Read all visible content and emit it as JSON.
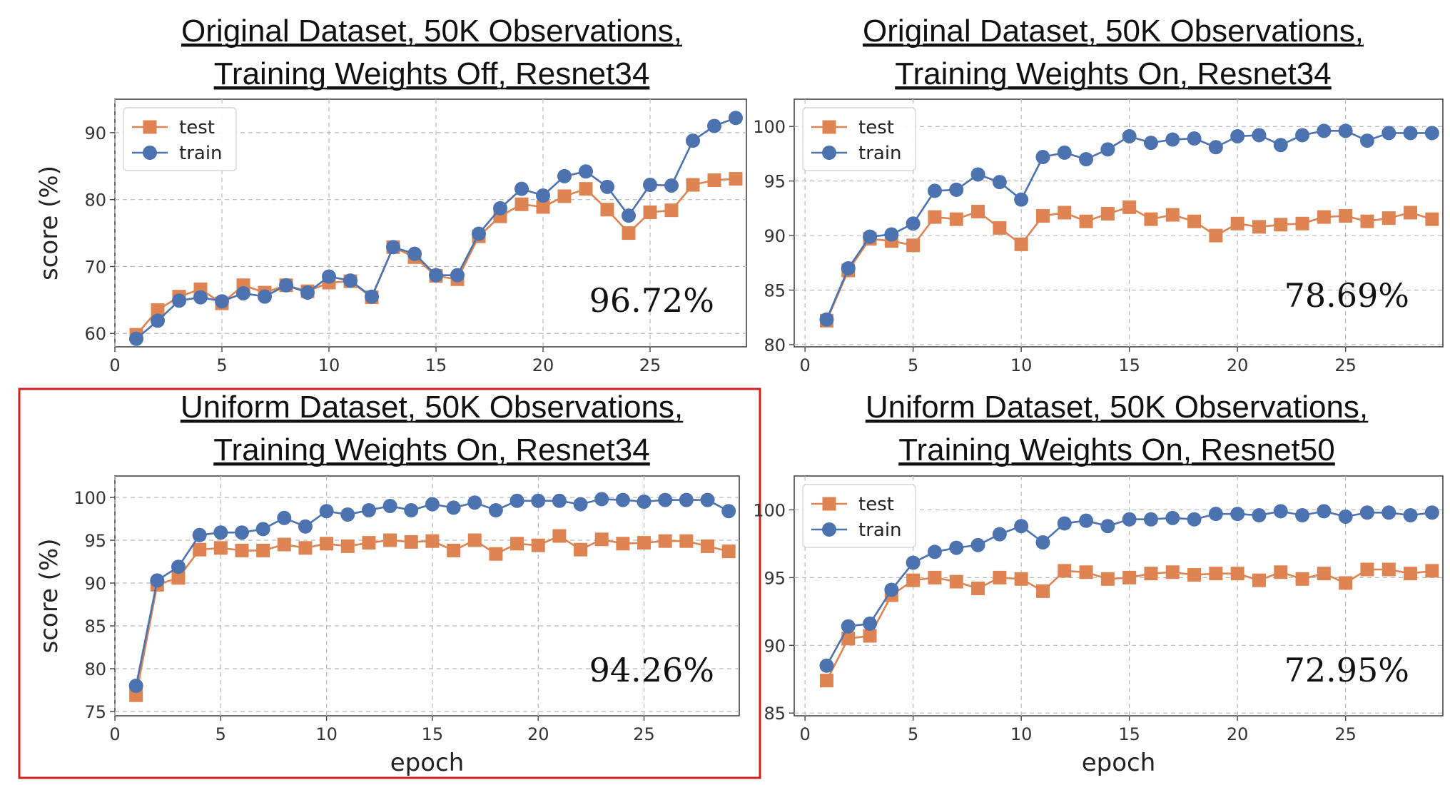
{
  "colors": {
    "test": "#dd8452",
    "train": "#4c72b0",
    "highlight": "#cc2222"
  },
  "chart_data": [
    {
      "type": "line",
      "title": [
        "Original Dataset, 50K Observations,",
        "Training Weights Off, Resnet34"
      ],
      "xlabel": "",
      "ylabel": "score (%)",
      "xlim": [
        0,
        29.5
      ],
      "ylim": [
        58,
        95
      ],
      "xticks": [
        0,
        5,
        10,
        15,
        20,
        25
      ],
      "yticks": [
        60,
        70,
        80,
        90
      ],
      "legend": "top-left",
      "grid": true,
      "annotation": "96.72%",
      "highlighted": false,
      "x": [
        1,
        2,
        3,
        4,
        5,
        6,
        7,
        8,
        9,
        10,
        11,
        12,
        13,
        14,
        15,
        16,
        17,
        18,
        19,
        20,
        21,
        22,
        23,
        24,
        25,
        26,
        27,
        28,
        29
      ],
      "series": [
        {
          "name": "test",
          "marker": "square",
          "values": [
            59.8,
            63.5,
            65.5,
            66.6,
            64.5,
            67.2,
            66.1,
            67.2,
            66.3,
            67.6,
            67.8,
            65.4,
            72.9,
            71.4,
            68.6,
            68.1,
            74.5,
            77.5,
            79.3,
            78.9,
            80.5,
            81.6,
            78.5,
            75.0,
            78.1,
            78.4,
            82.2,
            82.9,
            83.1
          ]
        },
        {
          "name": "train",
          "marker": "circle",
          "values": [
            59.2,
            61.9,
            64.9,
            65.4,
            64.8,
            66.0,
            65.5,
            67.2,
            66.1,
            68.5,
            67.9,
            65.5,
            72.9,
            71.9,
            68.7,
            68.7,
            74.9,
            78.7,
            81.6,
            80.6,
            83.5,
            84.2,
            81.9,
            77.6,
            82.2,
            82.1,
            88.8,
            91.0,
            92.2
          ]
        }
      ]
    },
    {
      "type": "line",
      "title": [
        "Original Dataset, 50K Observations,",
        "Training Weights On, Resnet34"
      ],
      "xlabel": "",
      "ylabel": "",
      "xlim": [
        -0.5,
        29.5
      ],
      "ylim": [
        79.8,
        102.5
      ],
      "xticks": [
        0,
        5,
        10,
        15,
        20,
        25
      ],
      "yticks": [
        80,
        85,
        90,
        95,
        100
      ],
      "legend": "top-left",
      "grid": true,
      "annotation": "78.69%",
      "highlighted": false,
      "x": [
        1,
        2,
        3,
        4,
        5,
        6,
        7,
        8,
        9,
        10,
        11,
        12,
        13,
        14,
        15,
        16,
        17,
        18,
        19,
        20,
        21,
        22,
        23,
        24,
        25,
        26,
        27,
        28,
        29
      ],
      "series": [
        {
          "name": "test",
          "marker": "square",
          "values": [
            82.2,
            86.8,
            89.7,
            89.5,
            89.1,
            91.7,
            91.5,
            92.2,
            90.7,
            89.2,
            91.8,
            92.1,
            91.3,
            92.0,
            92.6,
            91.5,
            91.9,
            91.3,
            90.0,
            91.1,
            90.8,
            91.0,
            91.1,
            91.7,
            91.8,
            91.3,
            91.6,
            92.1,
            91.5
          ]
        },
        {
          "name": "train",
          "marker": "circle",
          "values": [
            82.3,
            87.0,
            89.9,
            90.1,
            91.1,
            94.1,
            94.2,
            95.6,
            94.9,
            93.3,
            97.2,
            97.6,
            97.0,
            97.9,
            99.1,
            98.5,
            98.8,
            98.9,
            98.1,
            99.1,
            99.2,
            98.3,
            99.2,
            99.6,
            99.6,
            98.7,
            99.4,
            99.4,
            99.4
          ]
        }
      ]
    },
    {
      "type": "line",
      "title": [
        "Uniform Dataset, 50K Observations,",
        "Training Weights On, Resnet34"
      ],
      "xlabel": "epoch",
      "ylabel": "score (%)",
      "xlim": [
        0,
        29.5
      ],
      "ylim": [
        74.5,
        102.5
      ],
      "xticks": [
        0,
        5,
        10,
        15,
        20,
        25
      ],
      "yticks": [
        75,
        80,
        85,
        90,
        95,
        100
      ],
      "legend": "none",
      "grid": true,
      "annotation": "94.26%",
      "highlighted": true,
      "x": [
        1,
        2,
        3,
        4,
        5,
        6,
        7,
        8,
        9,
        10,
        11,
        12,
        13,
        14,
        15,
        16,
        17,
        18,
        19,
        20,
        21,
        22,
        23,
        24,
        25,
        26,
        27,
        28,
        29
      ],
      "series": [
        {
          "name": "test",
          "marker": "square",
          "values": [
            76.9,
            89.8,
            90.6,
            93.9,
            94.1,
            93.8,
            93.8,
            94.5,
            94.1,
            94.6,
            94.3,
            94.7,
            95.0,
            94.8,
            94.9,
            93.8,
            95.0,
            93.4,
            94.6,
            94.4,
            95.5,
            93.9,
            95.1,
            94.6,
            94.7,
            94.9,
            94.9,
            94.3,
            93.7
          ]
        },
        {
          "name": "train",
          "marker": "circle",
          "values": [
            78.0,
            90.3,
            91.9,
            95.6,
            95.9,
            95.9,
            96.3,
            97.6,
            96.6,
            98.4,
            98.0,
            98.5,
            99.0,
            98.5,
            99.2,
            98.8,
            99.4,
            98.5,
            99.6,
            99.6,
            99.6,
            99.2,
            99.8,
            99.7,
            99.5,
            99.7,
            99.7,
            99.7,
            98.4
          ]
        }
      ]
    },
    {
      "type": "line",
      "title": [
        "Uniform Dataset, 50K Observations,",
        "Training Weights On, Resnet50"
      ],
      "xlabel": "epoch",
      "ylabel": "",
      "xlim": [
        -0.5,
        29.5
      ],
      "ylim": [
        84.8,
        102.5
      ],
      "xticks": [
        0,
        5,
        10,
        15,
        20,
        25
      ],
      "yticks": [
        85,
        90,
        95,
        100
      ],
      "legend": "top-left",
      "grid": true,
      "annotation": "72.95%",
      "highlighted": false,
      "x": [
        1,
        2,
        3,
        4,
        5,
        6,
        7,
        8,
        9,
        10,
        11,
        12,
        13,
        14,
        15,
        16,
        17,
        18,
        19,
        20,
        21,
        22,
        23,
        24,
        25,
        26,
        27,
        28,
        29
      ],
      "series": [
        {
          "name": "test",
          "marker": "square",
          "values": [
            87.4,
            90.5,
            90.7,
            93.7,
            94.8,
            95.0,
            94.7,
            94.2,
            95.0,
            94.9,
            94.0,
            95.5,
            95.4,
            94.9,
            95.0,
            95.3,
            95.4,
            95.2,
            95.3,
            95.3,
            94.8,
            95.4,
            94.9,
            95.3,
            94.6,
            95.6,
            95.6,
            95.3,
            95.5
          ]
        },
        {
          "name": "train",
          "marker": "circle",
          "values": [
            88.5,
            91.4,
            91.6,
            94.1,
            96.1,
            96.9,
            97.2,
            97.4,
            98.2,
            98.8,
            97.6,
            99.0,
            99.2,
            98.8,
            99.3,
            99.3,
            99.4,
            99.3,
            99.7,
            99.7,
            99.6,
            99.9,
            99.6,
            99.9,
            99.5,
            99.8,
            99.8,
            99.6,
            99.8
          ]
        }
      ]
    }
  ]
}
